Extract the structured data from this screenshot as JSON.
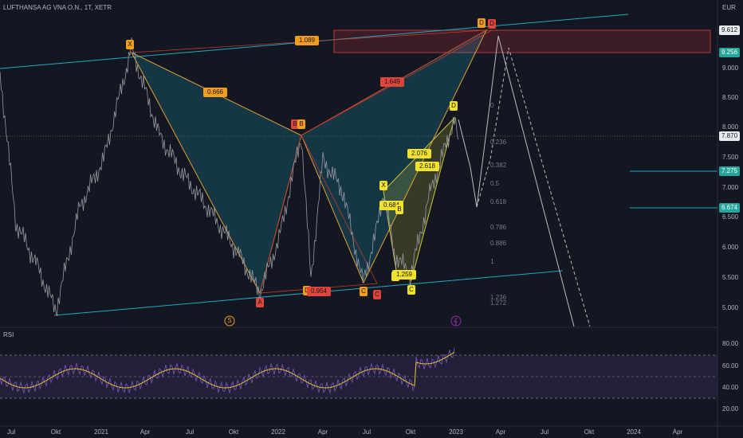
{
  "header": {
    "title": "LUFTHANSA AG VNA O.N., 1T, XETR",
    "currency": "EUR"
  },
  "price_axis": {
    "labels": [
      "9.000",
      "8.500",
      "8.000",
      "7.500",
      "7.000",
      "6.500",
      "6.000",
      "5.500",
      "5.000"
    ],
    "highlighted": [
      "9.612",
      "9.256",
      "7.870",
      "7.275",
      "6.674"
    ]
  },
  "time_axis": {
    "labels": [
      "Jul",
      "Okt",
      "2021",
      "Apr",
      "Jul",
      "Okt",
      "2022",
      "Apr",
      "Jul",
      "Okt",
      "2023",
      "Apr",
      "Jul",
      "Okt",
      "2024",
      "Apr"
    ]
  },
  "pattern_labels": [
    "X",
    "1.089",
    "0.666",
    "1.649",
    "B",
    "B",
    "A",
    "D",
    "0.954",
    "C",
    "C",
    "X",
    "0.684",
    "B",
    "A",
    "1.259",
    "C",
    "2.076",
    "2.618",
    "D",
    "D",
    "D"
  ],
  "fib_levels": [
    "0",
    "0.236",
    "0.382",
    "0.5",
    "0.618",
    "0.786",
    "0.886",
    "1",
    "1.236",
    "1.272"
  ],
  "markers": [
    "S"
  ],
  "rsi": {
    "title": "RSI",
    "labels": [
      "80.00",
      "60.00",
      "40.00",
      "20.00"
    ]
  }
}
